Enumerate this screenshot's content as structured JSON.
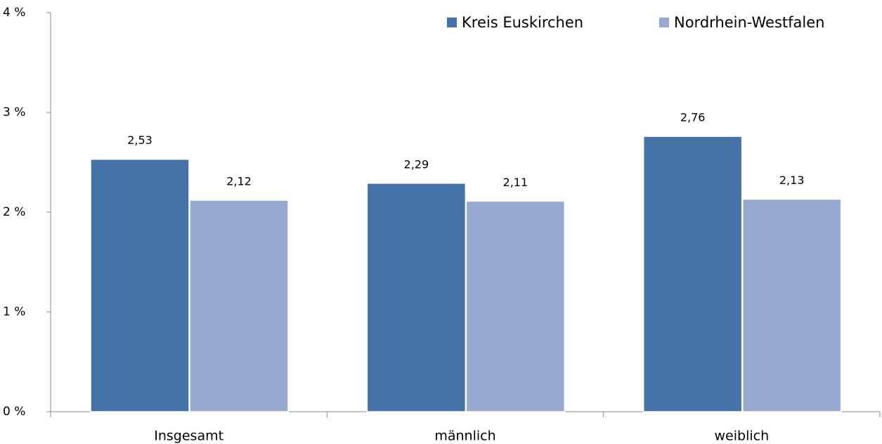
{
  "chart_data": {
    "type": "bar",
    "categories": [
      "Insgesamt",
      "männlich",
      "weiblich"
    ],
    "series": [
      {
        "name": "Kreis Euskirchen",
        "color": "#4572a7",
        "values": [
          2.53,
          2.29,
          2.76
        ],
        "value_labels": [
          "2,53",
          "2,29",
          "2,76"
        ]
      },
      {
        "name": "Nordrhein-Westfalen",
        "color": "#95a9d1",
        "values": [
          2.12,
          2.11,
          2.13
        ],
        "value_labels": [
          "2,12",
          "2,11",
          "2,13"
        ]
      }
    ],
    "ylim": [
      0,
      4
    ],
    "yticks": [
      {
        "value": 0,
        "label": "0 %"
      },
      {
        "value": 1,
        "label": "1 %"
      },
      {
        "value": 2,
        "label": "2 %"
      },
      {
        "value": 3,
        "label": "3 %"
      },
      {
        "value": 4,
        "label": "4 %"
      }
    ],
    "grid": false,
    "legend": "top-right"
  }
}
